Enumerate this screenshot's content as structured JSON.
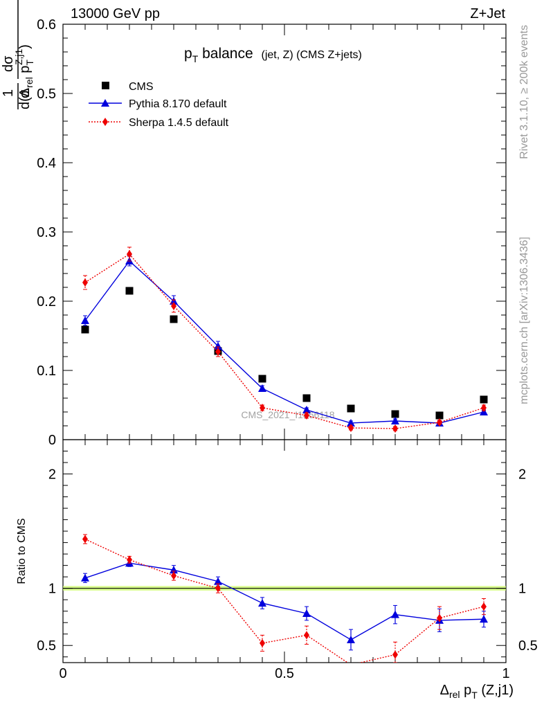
{
  "header": {
    "left": "13000 GeV pp",
    "right": "Z+Jet"
  },
  "plot": {
    "title_main": "p",
    "title_main_sub": "T",
    "title_main_rest": " balance",
    "title_small": "(jet, Z) (CMS Z+jets)",
    "watermark": "CMS_2021_I1866118"
  },
  "side_labels": {
    "rivet": "Rivet 3.1.10, ≥ 200k events",
    "mcplots": "mcplots.cern.ch [arXiv:1306.3436]"
  },
  "axes": {
    "ylabel_top": {
      "one": "1",
      "sigma": "σ",
      "dsigma": "dσ",
      "d_open": "d(Δ",
      "rel": "rel",
      "p": " p",
      "T": "T",
      "Zj1": "Z,j1",
      "close": ")"
    },
    "ylabel_ratio": "Ratio to CMS",
    "xlabel": {
      "delta": "Δ",
      "rel": "rel",
      "p": " p",
      "T": "T",
      "rest": " (Z,j1)"
    }
  },
  "legend": [
    {
      "name": "CMS",
      "color": "#000000",
      "marker": "square"
    },
    {
      "name": "Pythia 8.170 default",
      "color": "#0000dd",
      "marker": "triangle"
    },
    {
      "name": "Sherpa 1.4.5 default",
      "color": "#ee0000",
      "marker": "diamond"
    }
  ],
  "chart_data": [
    {
      "type": "scatter",
      "panel": "main",
      "xlim": [
        0,
        1
      ],
      "ylim": [
        0,
        0.6
      ],
      "yticks": [
        0,
        0.1,
        0.2,
        0.3,
        0.4,
        0.5,
        0.6
      ],
      "ytick_labels": [
        "0",
        "0.1",
        "0.2",
        "0.3",
        "0.4",
        "0.5",
        "0.6"
      ],
      "x": [
        0.05,
        0.15,
        0.25,
        0.35,
        0.45,
        0.55,
        0.65,
        0.75,
        0.85,
        0.95
      ],
      "series": [
        {
          "name": "CMS",
          "values": [
            0.159,
            0.215,
            0.174,
            0.128,
            0.088,
            0.06,
            0.045,
            0.037,
            0.035,
            0.058
          ],
          "errors": [
            0,
            0,
            0,
            0,
            0,
            0,
            0,
            0,
            0,
            0
          ]
        },
        {
          "name": "Pythia 8.170 default",
          "values": [
            0.172,
            0.258,
            0.2,
            0.135,
            0.074,
            0.043,
            0.024,
            0.027,
            0.024,
            0.04
          ],
          "errors": [
            0.007,
            0.007,
            0.008,
            0.007,
            0.004,
            0.003,
            0.003,
            0.003,
            0.003,
            0.003
          ]
        },
        {
          "name": "Sherpa 1.4.5 default",
          "values": [
            0.227,
            0.268,
            0.193,
            0.127,
            0.046,
            0.035,
            0.017,
            0.016,
            0.025,
            0.046
          ],
          "errors": [
            0.01,
            0.01,
            0.009,
            0.007,
            0.004,
            0.004,
            0.003,
            0.003,
            0.003,
            0.004
          ]
        }
      ]
    },
    {
      "type": "scatter",
      "panel": "ratio",
      "xlim": [
        0,
        1
      ],
      "ylim": [
        0.35,
        2.3
      ],
      "yticks": [
        0.5,
        1,
        2
      ],
      "ytick_labels": [
        "0.5",
        "1",
        "2"
      ],
      "xticks": [
        0,
        0.5,
        1
      ],
      "xtick_labels": [
        "0",
        "0.5",
        "1"
      ],
      "x": [
        0.05,
        0.15,
        0.25,
        0.35,
        0.45,
        0.55,
        0.65,
        0.75,
        0.85,
        0.95
      ],
      "series": [
        {
          "name": "Pythia 8.170 default",
          "values": [
            1.09,
            1.22,
            1.16,
            1.06,
            0.87,
            0.78,
            0.55,
            0.77,
            0.72,
            0.73
          ],
          "errors": [
            0.04,
            0.03,
            0.04,
            0.04,
            0.05,
            0.06,
            0.09,
            0.08,
            0.1,
            0.07
          ]
        },
        {
          "name": "Sherpa 1.4.5 default",
          "values": [
            1.43,
            1.25,
            1.11,
            1.0,
            0.52,
            0.59,
            0.33,
            0.42,
            0.74,
            0.84
          ],
          "errors": [
            0.04,
            0.03,
            0.04,
            0.04,
            0.07,
            0.08,
            0.08,
            0.11,
            0.1,
            0.07
          ]
        }
      ],
      "reference_line": 1,
      "reference_band_color": "#ccff66"
    }
  ]
}
